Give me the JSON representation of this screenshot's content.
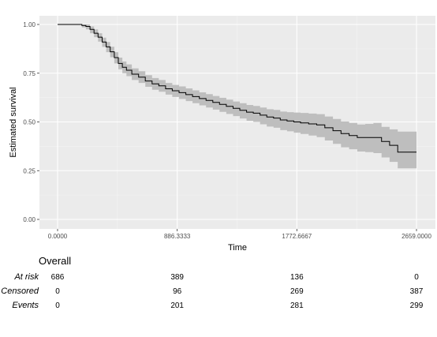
{
  "chart_data": {
    "type": "line",
    "xlabel": "Time",
    "ylabel": "Estimated survival",
    "xlim": [
      0,
      2659
    ],
    "ylim": [
      0,
      1
    ],
    "x_ticks": [
      0,
      886.3333,
      1772.6667,
      2659
    ],
    "x_tick_labels": [
      "0.0000",
      "886.3333",
      "1772.6667",
      "2659.0000"
    ],
    "y_ticks": [
      0,
      0.25,
      0.5,
      0.75,
      1
    ],
    "y_tick_labels": [
      "0.00",
      "0.25",
      "0.50",
      "0.75",
      "1.00"
    ],
    "grid": true,
    "background": "#EBEBEB",
    "line_color": "#000000",
    "band_color": "#BEBEBE",
    "series": [
      {
        "x": [
          0,
          140,
          180,
          210,
          240,
          270,
          300,
          330,
          360,
          390,
          420,
          450,
          480,
          510,
          550,
          600,
          650,
          700,
          750,
          800,
          850,
          900,
          950,
          1000,
          1050,
          1100,
          1150,
          1200,
          1250,
          1300,
          1350,
          1400,
          1450,
          1500,
          1550,
          1600,
          1650,
          1700,
          1750,
          1800,
          1860,
          1920,
          1980,
          2040,
          2100,
          2160,
          2220,
          2280,
          2340,
          2400,
          2460,
          2520,
          2659
        ],
        "y": [
          1.0,
          1.0,
          0.995,
          0.99,
          0.975,
          0.955,
          0.935,
          0.91,
          0.885,
          0.86,
          0.83,
          0.8,
          0.78,
          0.765,
          0.745,
          0.73,
          0.71,
          0.695,
          0.685,
          0.67,
          0.66,
          0.65,
          0.64,
          0.63,
          0.62,
          0.61,
          0.6,
          0.59,
          0.58,
          0.57,
          0.56,
          0.55,
          0.545,
          0.535,
          0.525,
          0.52,
          0.51,
          0.505,
          0.5,
          0.495,
          0.49,
          0.485,
          0.47,
          0.455,
          0.44,
          0.43,
          0.42,
          0.42,
          0.42,
          0.4,
          0.38,
          0.345,
          0.345
        ],
        "lower": [
          1.0,
          1.0,
          0.985,
          0.975,
          0.955,
          0.935,
          0.912,
          0.885,
          0.858,
          0.832,
          0.8,
          0.77,
          0.75,
          0.735,
          0.715,
          0.7,
          0.68,
          0.665,
          0.655,
          0.64,
          0.628,
          0.618,
          0.607,
          0.596,
          0.585,
          0.574,
          0.563,
          0.552,
          0.541,
          0.53,
          0.518,
          0.506,
          0.5,
          0.488,
          0.476,
          0.47,
          0.458,
          0.452,
          0.445,
          0.438,
          0.43,
          0.422,
          0.405,
          0.388,
          0.37,
          0.36,
          0.348,
          0.345,
          0.34,
          0.318,
          0.295,
          0.262,
          0.262
        ],
        "upper": [
          1.0,
          1.0,
          1.0,
          1.0,
          0.99,
          0.975,
          0.955,
          0.932,
          0.91,
          0.886,
          0.858,
          0.83,
          0.81,
          0.795,
          0.775,
          0.76,
          0.74,
          0.725,
          0.715,
          0.7,
          0.69,
          0.682,
          0.672,
          0.662,
          0.652,
          0.643,
          0.633,
          0.624,
          0.614,
          0.605,
          0.596,
          0.587,
          0.582,
          0.574,
          0.565,
          0.562,
          0.553,
          0.55,
          0.548,
          0.546,
          0.543,
          0.54,
          0.528,
          0.515,
          0.502,
          0.495,
          0.487,
          0.49,
          0.495,
          0.475,
          0.462,
          0.45,
          0.45
        ]
      }
    ]
  },
  "risk_table": {
    "title": "Overall",
    "columns_x": [
      0,
      886.3333,
      1772.6667,
      2659
    ],
    "rows": [
      {
        "label": "At risk",
        "values": [
          "686",
          "389",
          "136",
          "0"
        ]
      },
      {
        "label": "Censored",
        "values": [
          "0",
          "96",
          "269",
          "387"
        ]
      },
      {
        "label": "Events",
        "values": [
          "0",
          "201",
          "281",
          "299"
        ]
      }
    ]
  }
}
